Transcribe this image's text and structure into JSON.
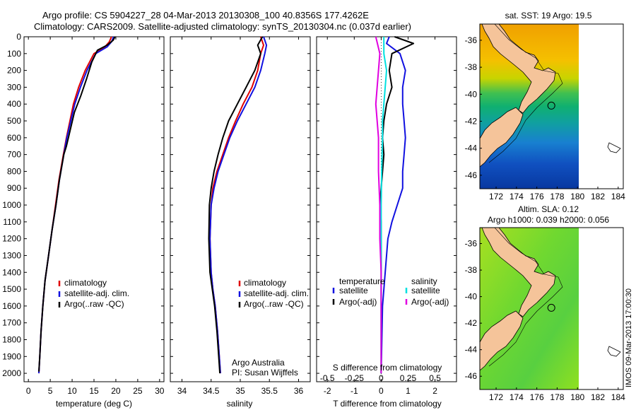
{
  "header": {
    "line1": "Argo profile: CS 5904227_28 04-Mar-2013 20130308_100 40.8356S 177.4262E",
    "line2": "Climatology: CARS2009. Satellite-adjusted climatology: synTS_20130304.nc (0.037d earlier)"
  },
  "side_stamp": "IMOS 09-Mar-2013 17:00:30",
  "colors": {
    "climatology": "#e00000",
    "satellite": "#1010e0",
    "argo": "#000000",
    "sal_satellite": "#00e0e0",
    "sal_argo": "#e000e0"
  },
  "chart_data": [
    {
      "type": "line",
      "id": "temperature",
      "xlabel": "temperature (deg C)",
      "xlim": [
        -1,
        31
      ],
      "ylim": [
        2050,
        0
      ],
      "x_ticks": [
        0,
        5,
        10,
        15,
        20,
        25,
        30
      ],
      "y_ticks": [
        0,
        100,
        200,
        300,
        400,
        500,
        600,
        700,
        800,
        900,
        1000,
        1100,
        1200,
        1300,
        1400,
        1500,
        1600,
        1700,
        1800,
        1900,
        2000
      ],
      "series": [
        {
          "name": "climatology",
          "color": "#e00000",
          "x": [
            19.0,
            18.5,
            17.5,
            15.0,
            13.0,
            11.5,
            10.3,
            9.5,
            8.7,
            8.0,
            7.0,
            6.2,
            5.4,
            4.6,
            3.8,
            3.3,
            2.9,
            2.6,
            2.4
          ],
          "y": [
            0,
            30,
            60,
            100,
            200,
            300,
            400,
            500,
            600,
            700,
            850,
            1000,
            1150,
            1300,
            1450,
            1600,
            1750,
            1900,
            2000
          ]
        },
        {
          "name": "satellite-adj. clim.",
          "color": "#1010e0",
          "x": [
            19.5,
            19.0,
            18.0,
            15.4,
            13.4,
            11.9,
            10.6,
            9.7,
            8.8,
            8.1,
            7.1,
            6.3,
            5.4,
            4.6,
            3.8,
            3.3,
            2.9,
            2.6,
            2.4
          ],
          "y": [
            0,
            30,
            60,
            100,
            200,
            300,
            400,
            500,
            600,
            700,
            850,
            1000,
            1150,
            1300,
            1450,
            1600,
            1750,
            1900,
            2000
          ]
        },
        {
          "name": "Argo(..raw -QC)",
          "color": "#000000",
          "x": [
            19.8,
            19.4,
            18.0,
            15.8,
            14.5,
            13.3,
            12.0,
            10.5,
            9.6,
            8.7,
            8.1,
            7.1,
            6.3,
            5.4,
            4.6,
            3.8,
            3.3,
            2.9,
            2.6,
            2.4
          ],
          "y": [
            0,
            20,
            50,
            80,
            150,
            250,
            350,
            450,
            550,
            650,
            700,
            850,
            1000,
            1150,
            1300,
            1450,
            1600,
            1750,
            1900,
            1990
          ]
        }
      ],
      "legend": [
        "climatology",
        "satellite-adj. clim.",
        "Argo(..raw -QC)"
      ]
    },
    {
      "type": "line",
      "id": "salinity",
      "xlabel": "salinity",
      "xlim": [
        33.8,
        36.2
      ],
      "ylim": [
        2050,
        0
      ],
      "x_ticks": [
        34,
        34.5,
        35,
        35.5,
        36
      ],
      "series": [
        {
          "name": "climatology",
          "color": "#e00000",
          "x": [
            35.35,
            35.4,
            35.35,
            35.3,
            35.2,
            35.05,
            34.92,
            34.8,
            34.7,
            34.6,
            34.53,
            34.5,
            34.48,
            34.5,
            34.53,
            34.57,
            34.61,
            34.64,
            34.66
          ],
          "y": [
            0,
            50,
            100,
            200,
            300,
            400,
            500,
            600,
            700,
            800,
            900,
            1000,
            1200,
            1400,
            1500,
            1600,
            1750,
            1900,
            2000
          ]
        },
        {
          "name": "satellite-adj. clim.",
          "color": "#1010e0",
          "x": [
            35.4,
            35.45,
            35.42,
            35.35,
            35.25,
            35.1,
            34.95,
            34.82,
            34.72,
            34.62,
            34.55,
            34.5,
            34.48,
            34.5,
            34.53,
            34.57,
            34.61,
            34.64,
            34.66
          ],
          "y": [
            0,
            50,
            100,
            200,
            300,
            400,
            500,
            600,
            700,
            800,
            900,
            1000,
            1200,
            1400,
            1500,
            1600,
            1750,
            1900,
            2000
          ]
        },
        {
          "name": "Argo(..raw -QC)",
          "color": "#000000",
          "x": [
            35.38,
            35.3,
            35.35,
            35.25,
            35.1,
            34.95,
            34.8,
            34.7,
            34.62,
            34.55,
            34.5,
            34.47,
            34.46,
            34.48,
            34.52,
            34.56,
            34.6,
            34.63,
            34.65
          ],
          "y": [
            0,
            50,
            100,
            200,
            300,
            400,
            500,
            600,
            700,
            800,
            900,
            1000,
            1200,
            1400,
            1500,
            1600,
            1750,
            1900,
            2000
          ]
        }
      ],
      "legend": [
        "climatology",
        "satellite-adj. clim.",
        "Argo(..raw -QC)"
      ],
      "annotation": [
        "Argo Australia",
        "PI: Susan Wijffels"
      ]
    },
    {
      "type": "line",
      "id": "differences",
      "xlabel": "T difference from climatology",
      "xlabel_top": "S difference from climatology",
      "xlim": [
        -2.4,
        2.8
      ],
      "ylim": [
        2050,
        0
      ],
      "x_ticks": [
        -2,
        -1,
        0,
        1,
        2
      ],
      "x_ticks_s": [
        -0.5,
        -0.25,
        0,
        0.25,
        0.5
      ],
      "x_ticks_s_labels": [
        "-0.5",
        "-0.25",
        "0",
        "0.25",
        "0.5"
      ],
      "series": [
        {
          "name": "temperature satellite",
          "color": "#1010e0",
          "x": [
            0.3,
            0.2,
            0.7,
            0.9,
            0.8,
            0.8,
            0.85,
            0.9,
            0.85,
            0.8,
            0.8,
            0.6,
            0.4,
            0.25,
            0.15,
            0.05,
            0.0
          ],
          "y": [
            0,
            40,
            100,
            200,
            300,
            400,
            500,
            600,
            700,
            800,
            900,
            1000,
            1100,
            1200,
            1400,
            1600,
            2000
          ]
        },
        {
          "name": "temperature Argo(-adj)",
          "color": "#000000",
          "x": [
            0.5,
            1.2,
            0.4,
            0.3,
            0.4,
            0.2,
            0.1,
            0.05,
            0.1,
            0.05,
            0.0,
            -0.05,
            0.0,
            0.0,
            0.0,
            0.0,
            0.0
          ],
          "y": [
            0,
            40,
            100,
            200,
            300,
            400,
            500,
            600,
            700,
            800,
            900,
            1000,
            1100,
            1200,
            1400,
            1600,
            2000
          ]
        },
        {
          "name": "salinity satellite",
          "color": "#00e0e0",
          "x": [
            0.1,
            0.1,
            0.2,
            0.15,
            0.1,
            0.05,
            0.05,
            0.02,
            0.0,
            0.0,
            0.0,
            0.0,
            0.0
          ],
          "y": [
            0,
            100,
            200,
            300,
            400,
            500,
            600,
            800,
            1000,
            1200,
            1400,
            1600,
            2000
          ]
        },
        {
          "name": "salinity Argo(-adj)",
          "color": "#e000e0",
          "x": [
            -0.2,
            -0.05,
            -0.1,
            -0.15,
            -0.2,
            -0.15,
            -0.1,
            -0.1,
            -0.05,
            -0.05,
            0.0,
            0.0,
            0.0
          ],
          "y": [
            0,
            100,
            200,
            300,
            400,
            500,
            600,
            800,
            1000,
            1200,
            1400,
            1600,
            2000
          ]
        }
      ],
      "legend_titles": [
        "temperature",
        "salinity"
      ],
      "legend_temperature": [
        "satellite",
        "Argo(-adj)"
      ],
      "legend_salinity": [
        "satellite",
        "Argo(-adj)"
      ]
    },
    {
      "type": "heatmap",
      "id": "sst-map",
      "title": "sat. SST: 19 Argo: 19.5",
      "x_ticks": [
        172,
        174,
        176,
        178,
        180,
        182,
        184
      ],
      "y_ticks": [
        -36,
        -38,
        -40,
        -42,
        -44,
        -46
      ],
      "xlim": [
        170.4,
        184.5
      ],
      "ylim": [
        -47.0,
        -34.8
      ],
      "argo_position": [
        177.43,
        -40.84
      ]
    },
    {
      "type": "heatmap",
      "id": "sla-map",
      "title": "Altim. SLA: 0.12",
      "subtitle": "Argo h1000: 0.039 h2000: 0.056",
      "x_ticks": [
        172,
        174,
        176,
        178,
        180,
        182,
        184
      ],
      "y_ticks": [
        -36,
        -38,
        -40,
        -42,
        -44,
        -46
      ],
      "xlim": [
        170.4,
        184.5
      ],
      "ylim": [
        -47.0,
        -34.8
      ],
      "argo_position": [
        177.43,
        -40.84
      ]
    }
  ]
}
